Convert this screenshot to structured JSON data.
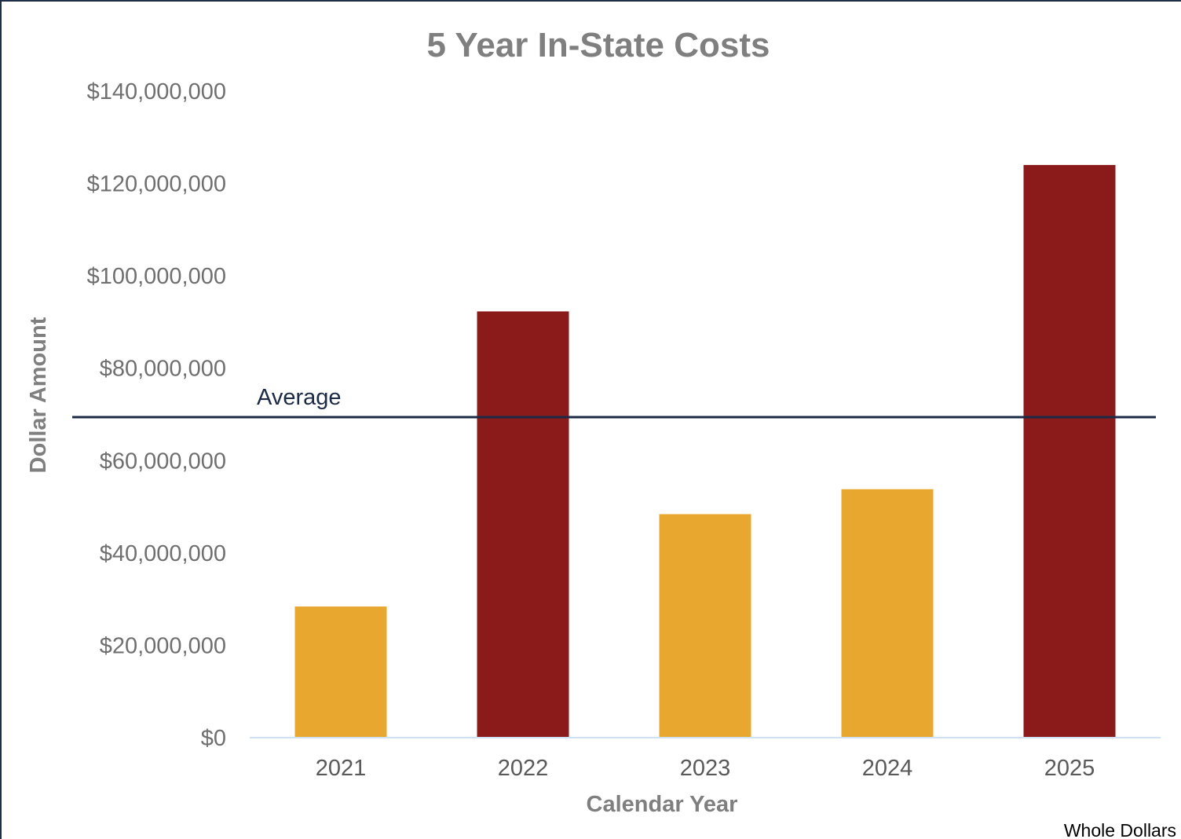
{
  "chart_data": {
    "type": "bar",
    "title": "5 Year In-State Costs",
    "xlabel": "Calendar Year",
    "ylabel": "Dollar Amount",
    "categories": [
      "2021",
      "2022",
      "2023",
      "2024",
      "2025"
    ],
    "values": [
      28400000,
      92300000,
      48400000,
      53800000,
      124000000
    ],
    "bar_colors": [
      "#E8A830",
      "#8B1A1A",
      "#E8A830",
      "#E8A830",
      "#8B1A1A"
    ],
    "ylim": [
      0,
      140000000
    ],
    "yticks": [
      0,
      20000000,
      40000000,
      60000000,
      80000000,
      100000000,
      120000000,
      140000000
    ],
    "ytick_labels": [
      "$0",
      "$20,000,000",
      "$40,000,000",
      "$60,000,000",
      "$80,000,000",
      "$100,000,000",
      "$120,000,000",
      "$140,000,000"
    ],
    "grid": false,
    "reference_line": {
      "label": "Average",
      "value": 69400000,
      "color": "#1B2A45"
    },
    "footnote": "Whole Dollars"
  }
}
